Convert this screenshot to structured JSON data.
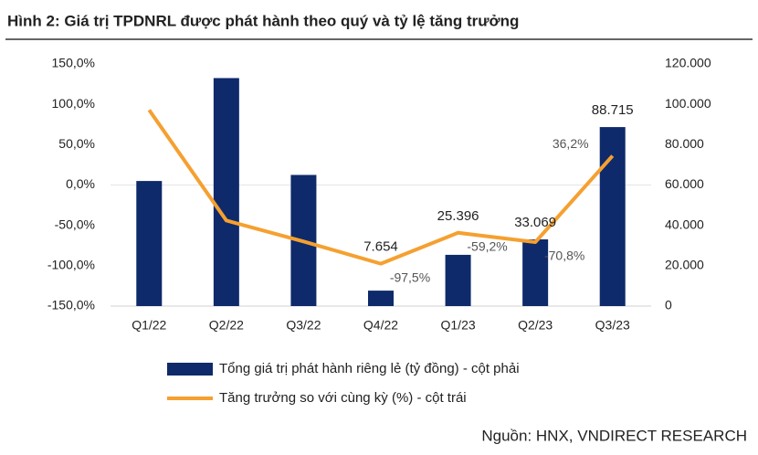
{
  "chart_data": {
    "type": "bar-line",
    "title": "Hình 2: Giá trị TPDNRL được phát hành theo quý và tỷ lệ tăng trưởng",
    "source": "Nguồn: HNX, VNDIRECT RESEARCH",
    "categories": [
      "Q1/22",
      "Q2/22",
      "Q3/22",
      "Q4/22",
      "Q1/23",
      "Q2/23",
      "Q3/23"
    ],
    "series": [
      {
        "name": "Tổng giá trị phát hành riêng lẻ (tỷ đồng) - cột phải",
        "type": "bar",
        "axis": "y2",
        "color": "#0e2a6b",
        "values": [
          62000,
          113000,
          65000,
          7654,
          25396,
          33069,
          88715
        ],
        "value_labels": [
          null,
          null,
          null,
          "7.654",
          "25.396",
          "33.069",
          "88.715"
        ]
      },
      {
        "name": "Tăng trưởng so với cùng kỳ (%) - cột trái",
        "type": "line",
        "color": "#f5a030",
        "values": [
          93,
          -44,
          -70,
          -97.5,
          -59.2,
          -70.8,
          36.2
        ],
        "value_labels": [
          null,
          null,
          null,
          "-97,5%",
          "-59,2%",
          "-70,8%",
          "36,2%"
        ]
      }
    ],
    "ylim": [
      -150,
      150
    ],
    "yticks": [
      {
        "value": -150,
        "label": "-150,0%"
      },
      {
        "value": -100,
        "label": "-100,0%"
      },
      {
        "value": -50,
        "label": "-50,0%"
      },
      {
        "value": 0,
        "label": "0,0%"
      },
      {
        "value": 50,
        "label": "50,0%"
      },
      {
        "value": 100,
        "label": "100,0%"
      },
      {
        "value": 150,
        "label": "150,0%"
      }
    ],
    "y2lim": [
      0,
      120000
    ],
    "y2ticks": [
      0,
      {
        "value": 20000,
        "label": "20.000"
      },
      {
        "value": 40000,
        "label": "40.000"
      },
      {
        "value": 60000,
        "label": "60.000"
      },
      {
        "value": 80000,
        "label": "80.000"
      },
      {
        "value": 100000,
        "label": "100.000"
      },
      {
        "value": 120000,
        "label": "120.000"
      }
    ],
    "grid": false
  }
}
